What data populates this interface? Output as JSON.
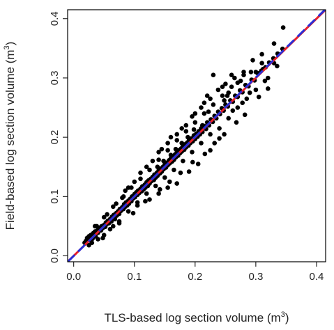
{
  "chart_data": {
    "type": "scatter",
    "xlabel": "TLS-based log section volume",
    "ylabel": "Field-based log section volume",
    "unit_base": "m",
    "unit_exp": "3",
    "xlim": [
      -0.01,
      0.415
    ],
    "ylim": [
      -0.01,
      0.415
    ],
    "xticks": [
      0.0,
      0.1,
      0.2,
      0.3,
      0.4
    ],
    "xtick_labels": [
      "0.0",
      "0.1",
      "0.2",
      "0.3",
      "0.4"
    ],
    "yticks": [
      0.0,
      0.1,
      0.2,
      0.3,
      0.4
    ],
    "ytick_labels": [
      "0.0",
      "0.1",
      "0.2",
      "0.3",
      "0.4"
    ],
    "grid": false,
    "legend": "none",
    "point_color": "#000000",
    "lines": [
      {
        "style": "solid",
        "color": "#e8202a",
        "x": [
          -0.01,
          0.415
        ],
        "y": [
          -0.01,
          0.415
        ]
      },
      {
        "style": "dashed",
        "color": "#2a2fd6",
        "x": [
          -0.01,
          0.415
        ],
        "y": [
          -0.0101,
          0.4161
        ]
      }
    ],
    "points": [
      [
        0.018,
        0.022
      ],
      [
        0.02,
        0.025
      ],
      [
        0.022,
        0.03
      ],
      [
        0.024,
        0.027
      ],
      [
        0.025,
        0.033
      ],
      [
        0.027,
        0.026
      ],
      [
        0.028,
        0.035
      ],
      [
        0.03,
        0.031
      ],
      [
        0.031,
        0.029
      ],
      [
        0.032,
        0.038
      ],
      [
        0.034,
        0.036
      ],
      [
        0.035,
        0.041
      ],
      [
        0.036,
        0.033
      ],
      [
        0.038,
        0.042
      ],
      [
        0.04,
        0.039
      ],
      [
        0.041,
        0.046
      ],
      [
        0.042,
        0.044
      ],
      [
        0.044,
        0.048
      ],
      [
        0.045,
        0.043
      ],
      [
        0.046,
        0.05
      ],
      [
        0.048,
        0.047
      ],
      [
        0.05,
        0.052
      ],
      [
        0.052,
        0.049
      ],
      [
        0.053,
        0.056
      ],
      [
        0.055,
        0.054
      ],
      [
        0.056,
        0.059
      ],
      [
        0.058,
        0.055
      ],
      [
        0.06,
        0.062
      ],
      [
        0.062,
        0.058
      ],
      [
        0.063,
        0.066
      ],
      [
        0.065,
        0.064
      ],
      [
        0.066,
        0.069
      ],
      [
        0.068,
        0.062
      ],
      [
        0.07,
        0.072
      ],
      [
        0.071,
        0.068
      ],
      [
        0.073,
        0.075
      ],
      [
        0.075,
        0.071
      ],
      [
        0.076,
        0.079
      ],
      [
        0.078,
        0.076
      ],
      [
        0.08,
        0.082
      ],
      [
        0.082,
        0.079
      ],
      [
        0.083,
        0.087
      ],
      [
        0.085,
        0.083
      ],
      [
        0.086,
        0.09
      ],
      [
        0.088,
        0.085
      ],
      [
        0.09,
        0.093
      ],
      [
        0.091,
        0.088
      ],
      [
        0.093,
        0.096
      ],
      [
        0.095,
        0.092
      ],
      [
        0.096,
        0.1
      ],
      [
        0.098,
        0.097
      ],
      [
        0.1,
        0.104
      ],
      [
        0.101,
        0.099
      ],
      [
        0.103,
        0.107
      ],
      [
        0.105,
        0.103
      ],
      [
        0.106,
        0.11
      ],
      [
        0.108,
        0.106
      ],
      [
        0.11,
        0.113
      ],
      [
        0.112,
        0.109
      ],
      [
        0.113,
        0.117
      ],
      [
        0.115,
        0.112
      ],
      [
        0.117,
        0.12
      ],
      [
        0.118,
        0.115
      ],
      [
        0.12,
        0.124
      ],
      [
        0.122,
        0.118
      ],
      [
        0.123,
        0.127
      ],
      [
        0.125,
        0.122
      ],
      [
        0.127,
        0.13
      ],
      [
        0.128,
        0.126
      ],
      [
        0.13,
        0.133
      ],
      [
        0.132,
        0.128
      ],
      [
        0.133,
        0.137
      ],
      [
        0.135,
        0.132
      ],
      [
        0.137,
        0.14
      ],
      [
        0.138,
        0.135
      ],
      [
        0.14,
        0.144
      ],
      [
        0.142,
        0.139
      ],
      [
        0.143,
        0.147
      ],
      [
        0.145,
        0.142
      ],
      [
        0.147,
        0.15
      ],
      [
        0.148,
        0.146
      ],
      [
        0.15,
        0.154
      ],
      [
        0.152,
        0.149
      ],
      [
        0.153,
        0.157
      ],
      [
        0.155,
        0.153
      ],
      [
        0.157,
        0.161
      ],
      [
        0.158,
        0.156
      ],
      [
        0.16,
        0.164
      ],
      [
        0.162,
        0.159
      ],
      [
        0.163,
        0.168
      ],
      [
        0.165,
        0.162
      ],
      [
        0.167,
        0.171
      ],
      [
        0.168,
        0.166
      ],
      [
        0.17,
        0.175
      ],
      [
        0.172,
        0.169
      ],
      [
        0.173,
        0.178
      ],
      [
        0.175,
        0.173
      ],
      [
        0.177,
        0.181
      ],
      [
        0.178,
        0.176
      ],
      [
        0.18,
        0.185
      ],
      [
        0.182,
        0.179
      ],
      [
        0.183,
        0.188
      ],
      [
        0.185,
        0.183
      ],
      [
        0.187,
        0.191
      ],
      [
        0.189,
        0.186
      ],
      [
        0.19,
        0.195
      ],
      [
        0.192,
        0.19
      ],
      [
        0.194,
        0.198
      ],
      [
        0.196,
        0.193
      ],
      [
        0.198,
        0.203
      ],
      [
        0.2,
        0.197
      ],
      [
        0.202,
        0.206
      ],
      [
        0.204,
        0.201
      ],
      [
        0.206,
        0.21
      ],
      [
        0.208,
        0.205
      ],
      [
        0.21,
        0.215
      ],
      [
        0.212,
        0.209
      ],
      [
        0.215,
        0.219
      ],
      [
        0.218,
        0.214
      ],
      [
        0.22,
        0.225
      ],
      [
        0.223,
        0.22
      ],
      [
        0.226,
        0.23
      ],
      [
        0.229,
        0.226
      ],
      [
        0.232,
        0.236
      ],
      [
        0.235,
        0.232
      ],
      [
        0.238,
        0.243
      ],
      [
        0.241,
        0.239
      ],
      [
        0.244,
        0.249
      ],
      [
        0.247,
        0.245
      ],
      [
        0.25,
        0.255
      ],
      [
        0.254,
        0.252
      ],
      [
        0.258,
        0.262
      ],
      [
        0.262,
        0.26
      ],
      [
        0.266,
        0.27
      ],
      [
        0.27,
        0.268
      ],
      [
        0.274,
        0.279
      ],
      [
        0.278,
        0.276
      ],
      [
        0.283,
        0.288
      ],
      [
        0.288,
        0.286
      ],
      [
        0.293,
        0.297
      ],
      [
        0.298,
        0.296
      ],
      [
        0.303,
        0.308
      ],
      [
        0.309,
        0.312
      ],
      [
        0.316,
        0.318
      ],
      [
        0.322,
        0.326
      ],
      [
        0.329,
        0.333
      ],
      [
        0.336,
        0.341
      ],
      [
        0.344,
        0.349
      ],
      [
        0.048,
        0.03
      ],
      [
        0.06,
        0.045
      ],
      [
        0.075,
        0.058
      ],
      [
        0.09,
        0.075
      ],
      [
        0.105,
        0.09
      ],
      [
        0.12,
        0.105
      ],
      [
        0.135,
        0.118
      ],
      [
        0.15,
        0.132
      ],
      [
        0.165,
        0.145
      ],
      [
        0.18,
        0.16
      ],
      [
        0.195,
        0.175
      ],
      [
        0.21,
        0.19
      ],
      [
        0.225,
        0.205
      ],
      [
        0.24,
        0.215
      ],
      [
        0.255,
        0.232
      ],
      [
        0.27,
        0.25
      ],
      [
        0.285,
        0.265
      ],
      [
        0.3,
        0.28
      ],
      [
        0.32,
        0.3
      ],
      [
        0.035,
        0.05
      ],
      [
        0.05,
        0.065
      ],
      [
        0.065,
        0.083
      ],
      [
        0.08,
        0.098
      ],
      [
        0.095,
        0.115
      ],
      [
        0.11,
        0.13
      ],
      [
        0.125,
        0.145
      ],
      [
        0.14,
        0.162
      ],
      [
        0.155,
        0.178
      ],
      [
        0.17,
        0.195
      ],
      [
        0.185,
        0.21
      ],
      [
        0.2,
        0.225
      ],
      [
        0.215,
        0.24
      ],
      [
        0.23,
        0.255
      ],
      [
        0.245,
        0.27
      ],
      [
        0.26,
        0.285
      ],
      [
        0.275,
        0.295
      ],
      [
        0.292,
        0.31
      ],
      [
        0.31,
        0.325
      ],
      [
        0.075,
        0.055
      ],
      [
        0.098,
        0.072
      ],
      [
        0.118,
        0.092
      ],
      [
        0.142,
        0.112
      ],
      [
        0.158,
        0.125
      ],
      [
        0.176,
        0.14
      ],
      [
        0.196,
        0.158
      ],
      [
        0.216,
        0.172
      ],
      [
        0.232,
        0.19
      ],
      [
        0.248,
        0.205
      ],
      [
        0.268,
        0.225
      ],
      [
        0.282,
        0.238
      ],
      [
        0.305,
        0.268
      ],
      [
        0.32,
        0.282
      ],
      [
        0.19,
        0.142
      ],
      [
        0.17,
        0.122
      ],
      [
        0.205,
        0.155
      ],
      [
        0.225,
        0.178
      ],
      [
        0.24,
        0.198
      ],
      [
        0.085,
        0.11
      ],
      [
        0.11,
        0.14
      ],
      [
        0.13,
        0.16
      ],
      [
        0.145,
        0.18
      ],
      [
        0.16,
        0.2
      ],
      [
        0.178,
        0.215
      ],
      [
        0.195,
        0.235
      ],
      [
        0.21,
        0.25
      ],
      [
        0.225,
        0.265
      ],
      [
        0.238,
        0.28
      ],
      [
        0.25,
        0.29
      ],
      [
        0.265,
        0.3
      ],
      [
        0.23,
        0.305
      ],
      [
        0.28,
        0.305
      ],
      [
        0.3,
        0.31
      ],
      [
        0.312,
        0.315
      ],
      [
        0.33,
        0.325
      ],
      [
        0.255,
        0.275
      ],
      [
        0.262,
        0.245
      ],
      [
        0.278,
        0.258
      ],
      [
        0.29,
        0.275
      ],
      [
        0.315,
        0.295
      ],
      [
        0.335,
        0.32
      ],
      [
        0.345,
        0.385
      ],
      [
        0.33,
        0.358
      ],
      [
        0.31,
        0.34
      ],
      [
        0.295,
        0.33
      ],
      [
        0.26,
        0.305
      ],
      [
        0.245,
        0.285
      ],
      [
        0.12,
        0.15
      ],
      [
        0.14,
        0.175
      ],
      [
        0.155,
        0.19
      ],
      [
        0.17,
        0.205
      ],
      [
        0.185,
        0.22
      ],
      [
        0.2,
        0.24
      ],
      [
        0.215,
        0.258
      ],
      [
        0.22,
        0.27
      ],
      [
        0.1,
        0.125
      ],
      [
        0.09,
        0.115
      ],
      [
        0.105,
        0.085
      ],
      [
        0.125,
        0.095
      ],
      [
        0.14,
        0.105
      ],
      [
        0.155,
        0.115
      ],
      [
        0.05,
        0.035
      ],
      [
        0.065,
        0.05
      ],
      [
        0.04,
        0.028
      ],
      [
        0.03,
        0.022
      ],
      [
        0.025,
        0.018
      ],
      [
        0.038,
        0.05
      ],
      [
        0.055,
        0.07
      ],
      [
        0.07,
        0.088
      ],
      [
        0.082,
        0.1
      ],
      [
        0.28,
        0.31
      ],
      [
        0.27,
        0.292
      ],
      [
        0.253,
        0.27
      ],
      [
        0.248,
        0.262
      ],
      [
        0.222,
        0.243
      ],
      [
        0.212,
        0.22
      ],
      [
        0.198,
        0.213
      ],
      [
        0.188,
        0.2
      ],
      [
        0.178,
        0.19
      ],
      [
        0.168,
        0.18
      ],
      [
        0.16,
        0.17
      ],
      [
        0.148,
        0.16
      ],
      [
        0.138,
        0.15
      ]
    ]
  }
}
